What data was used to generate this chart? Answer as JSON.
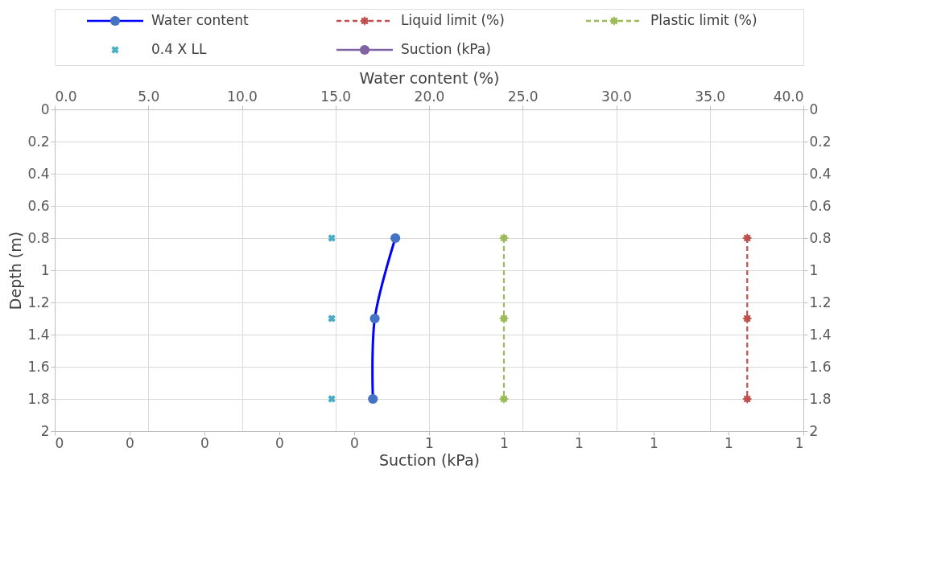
{
  "chart_data": {
    "type": "line",
    "xlabel": "Suction (kPa)",
    "x2label": "Water content (%)",
    "ylabel": "Depth (m)",
    "xlim": [
      0,
      1
    ],
    "xticks": [
      {
        "value": 0,
        "label": "0"
      },
      {
        "value": 0.1,
        "label": "0"
      },
      {
        "value": 0.2,
        "label": "0"
      },
      {
        "value": 0.3,
        "label": "0"
      },
      {
        "value": 0.4,
        "label": "0"
      },
      {
        "value": 0.5,
        "label": "1"
      },
      {
        "value": 0.6,
        "label": "1"
      },
      {
        "value": 0.7,
        "label": "1"
      },
      {
        "value": 0.8,
        "label": "1"
      },
      {
        "value": 0.9,
        "label": "1"
      },
      {
        "value": 1,
        "label": "1"
      }
    ],
    "x2lim": [
      0,
      40
    ],
    "x2ticks": [
      {
        "value": 0,
        "label": "0.0"
      },
      {
        "value": 5,
        "label": "5.0"
      },
      {
        "value": 10,
        "label": "10.0"
      },
      {
        "value": 15,
        "label": "15.0"
      },
      {
        "value": 20,
        "label": "20.0"
      },
      {
        "value": 25,
        "label": "25.0"
      },
      {
        "value": 30,
        "label": "30.0"
      },
      {
        "value": 35,
        "label": "35.0"
      },
      {
        "value": 40,
        "label": "40.0"
      }
    ],
    "ylim": [
      2,
      0
    ],
    "yticks": [
      0,
      0.2,
      0.4,
      0.6,
      0.8,
      1,
      1.2,
      1.4,
      1.6,
      1.8,
      2
    ],
    "y2lim": [
      2,
      0
    ],
    "y2ticks": [
      0,
      0.2,
      0.4,
      0.6,
      0.8,
      1,
      1.2,
      1.4,
      1.6,
      1.8,
      2
    ],
    "grid": true,
    "legend": "top",
    "series": [
      {
        "name": "Water content",
        "color": "#0000ff",
        "axis": "x2",
        "marker": "circle",
        "line_style": "solid",
        "x": [
          18.2,
          17.1,
          17.0
        ],
        "values": [
          0.8,
          1.3,
          1.8
        ]
      },
      {
        "name": "Liquid limit (%)",
        "color": "#c0504d",
        "axis": "x2",
        "marker": "star",
        "line_style": "dashed",
        "x": [
          37,
          37,
          37
        ],
        "values": [
          0.8,
          1.3,
          1.8
        ]
      },
      {
        "name": "Plastic limit (%)",
        "color": "#9bbb59",
        "axis": "x2",
        "marker": "star",
        "line_style": "dashed",
        "x": [
          24,
          24,
          24
        ],
        "values": [
          0.8,
          1.3,
          1.8
        ]
      },
      {
        "name": "0.4 X LL",
        "type": "scatter",
        "color": "#4bacc6",
        "axis": "x2",
        "marker": "cross",
        "x": [
          14.8,
          14.8,
          14.8
        ],
        "values": [
          0.8,
          1.3,
          1.8
        ]
      },
      {
        "name": "Suction (kPa)",
        "color": "#8064a2",
        "marker": "circle",
        "line_style": "solid"
      }
    ]
  }
}
